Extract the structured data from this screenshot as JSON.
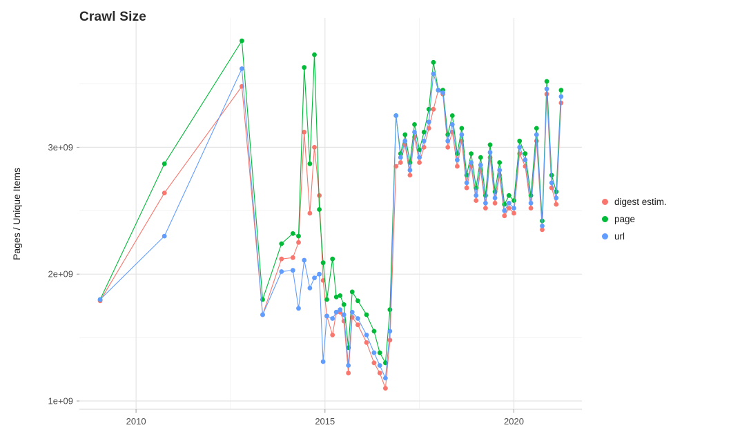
{
  "chart_data": {
    "type": "line",
    "title": "Crawl Size",
    "xlabel": "",
    "ylabel": "Pages / Unique Items",
    "y_unit": "value × 1e9 (billions of pages / unique items)",
    "grid": true,
    "legend_position": "right",
    "x_range": [
      2008.5,
      2021.8
    ],
    "y_range": [
      0.94,
      4.02
    ],
    "x_ticks": [
      {
        "value": 2010,
        "label": "2010"
      },
      {
        "value": 2015,
        "label": "2015"
      },
      {
        "value": 2020,
        "label": "2020"
      }
    ],
    "y_ticks": [
      {
        "value": 1,
        "label": "1e+09"
      },
      {
        "value": 2,
        "label": "2e+09"
      },
      {
        "value": 3,
        "label": "3e+09"
      }
    ],
    "x_minor": [
      2012.5,
      2017.5
    ],
    "y_minor": [
      1.5,
      2.5,
      3.5
    ],
    "series": [
      {
        "id": "digest-estim",
        "name": "digest estim.",
        "color": "#F8766D",
        "points": [
          [
            2009.05,
            1.79
          ],
          [
            2010.75,
            2.64
          ],
          [
            2012.8,
            3.48
          ],
          [
            2013.35,
            1.68
          ],
          [
            2013.85,
            2.12
          ],
          [
            2014.15,
            2.13
          ],
          [
            2014.3,
            2.25
          ],
          [
            2014.45,
            3.12
          ],
          [
            2014.6,
            2.48
          ],
          [
            2014.72,
            3.0
          ],
          [
            2014.85,
            2.62
          ],
          [
            2014.95,
            1.95
          ],
          [
            2015.05,
            1.67
          ],
          [
            2015.2,
            1.52
          ],
          [
            2015.3,
            1.7
          ],
          [
            2015.4,
            1.7
          ],
          [
            2015.5,
            1.63
          ],
          [
            2015.62,
            1.22
          ],
          [
            2015.72,
            1.66
          ],
          [
            2015.87,
            1.6
          ],
          [
            2016.1,
            1.46
          ],
          [
            2016.3,
            1.3
          ],
          [
            2016.45,
            1.22
          ],
          [
            2016.6,
            1.1
          ],
          [
            2016.72,
            1.48
          ],
          [
            2016.88,
            2.85
          ],
          [
            2017.0,
            2.88
          ],
          [
            2017.12,
            3.02
          ],
          [
            2017.25,
            2.78
          ],
          [
            2017.37,
            3.08
          ],
          [
            2017.5,
            2.88
          ],
          [
            2017.62,
            3.0
          ],
          [
            2017.75,
            3.15
          ],
          [
            2017.87,
            3.3
          ],
          [
            2018.0,
            3.45
          ],
          [
            2018.12,
            3.42
          ],
          [
            2018.25,
            3.0
          ],
          [
            2018.37,
            3.12
          ],
          [
            2018.5,
            2.85
          ],
          [
            2018.62,
            3.05
          ],
          [
            2018.75,
            2.68
          ],
          [
            2018.87,
            2.85
          ],
          [
            2019.0,
            2.58
          ],
          [
            2019.12,
            2.82
          ],
          [
            2019.25,
            2.52
          ],
          [
            2019.37,
            2.92
          ],
          [
            2019.5,
            2.56
          ],
          [
            2019.62,
            2.78
          ],
          [
            2019.75,
            2.46
          ],
          [
            2019.87,
            2.52
          ],
          [
            2020.0,
            2.48
          ],
          [
            2020.15,
            2.95
          ],
          [
            2020.3,
            2.85
          ],
          [
            2020.45,
            2.52
          ],
          [
            2020.6,
            3.05
          ],
          [
            2020.75,
            2.35
          ],
          [
            2020.87,
            3.42
          ],
          [
            2021.0,
            2.68
          ],
          [
            2021.12,
            2.55
          ],
          [
            2021.25,
            3.35
          ]
        ]
      },
      {
        "id": "page",
        "name": "page",
        "color": "#00BA38",
        "points": [
          [
            2009.05,
            1.8
          ],
          [
            2010.75,
            2.87
          ],
          [
            2012.8,
            3.84
          ],
          [
            2013.35,
            1.8
          ],
          [
            2013.85,
            2.24
          ],
          [
            2014.15,
            2.32
          ],
          [
            2014.3,
            2.3
          ],
          [
            2014.45,
            3.63
          ],
          [
            2014.6,
            2.87
          ],
          [
            2014.72,
            3.73
          ],
          [
            2014.85,
            2.51
          ],
          [
            2014.95,
            2.09
          ],
          [
            2015.05,
            1.8
          ],
          [
            2015.2,
            2.12
          ],
          [
            2015.3,
            1.82
          ],
          [
            2015.4,
            1.83
          ],
          [
            2015.5,
            1.76
          ],
          [
            2015.62,
            1.42
          ],
          [
            2015.72,
            1.86
          ],
          [
            2015.87,
            1.79
          ],
          [
            2016.1,
            1.68
          ],
          [
            2016.3,
            1.55
          ],
          [
            2016.45,
            1.38
          ],
          [
            2016.6,
            1.3
          ],
          [
            2016.72,
            1.72
          ],
          [
            2016.88,
            3.25
          ],
          [
            2017.0,
            2.95
          ],
          [
            2017.12,
            3.1
          ],
          [
            2017.25,
            2.88
          ],
          [
            2017.37,
            3.18
          ],
          [
            2017.5,
            2.98
          ],
          [
            2017.62,
            3.12
          ],
          [
            2017.75,
            3.3
          ],
          [
            2017.87,
            3.67
          ],
          [
            2018.0,
            3.45
          ],
          [
            2018.12,
            3.45
          ],
          [
            2018.25,
            3.1
          ],
          [
            2018.37,
            3.25
          ],
          [
            2018.5,
            2.95
          ],
          [
            2018.62,
            3.15
          ],
          [
            2018.75,
            2.78
          ],
          [
            2018.87,
            2.95
          ],
          [
            2019.0,
            2.68
          ],
          [
            2019.12,
            2.92
          ],
          [
            2019.25,
            2.62
          ],
          [
            2019.37,
            3.02
          ],
          [
            2019.5,
            2.65
          ],
          [
            2019.62,
            2.88
          ],
          [
            2019.75,
            2.55
          ],
          [
            2019.87,
            2.62
          ],
          [
            2020.0,
            2.58
          ],
          [
            2020.15,
            3.05
          ],
          [
            2020.3,
            2.95
          ],
          [
            2020.45,
            2.62
          ],
          [
            2020.6,
            3.15
          ],
          [
            2020.75,
            2.42
          ],
          [
            2020.87,
            3.52
          ],
          [
            2021.0,
            2.78
          ],
          [
            2021.12,
            2.65
          ],
          [
            2021.25,
            3.45
          ]
        ]
      },
      {
        "id": "url",
        "name": "url",
        "color": "#619CFF",
        "points": [
          [
            2009.05,
            1.8
          ],
          [
            2010.75,
            2.3
          ],
          [
            2012.8,
            3.62
          ],
          [
            2013.35,
            1.68
          ],
          [
            2013.85,
            2.02
          ],
          [
            2014.15,
            2.03
          ],
          [
            2014.3,
            1.73
          ],
          [
            2014.45,
            2.11
          ],
          [
            2014.6,
            1.89
          ],
          [
            2014.72,
            1.97
          ],
          [
            2014.85,
            2.0
          ],
          [
            2014.95,
            1.31
          ],
          [
            2015.05,
            1.67
          ],
          [
            2015.2,
            1.65
          ],
          [
            2015.3,
            1.7
          ],
          [
            2015.4,
            1.72
          ],
          [
            2015.5,
            1.68
          ],
          [
            2015.62,
            1.28
          ],
          [
            2015.72,
            1.7
          ],
          [
            2015.87,
            1.65
          ],
          [
            2016.1,
            1.52
          ],
          [
            2016.3,
            1.38
          ],
          [
            2016.45,
            1.28
          ],
          [
            2016.6,
            1.18
          ],
          [
            2016.72,
            1.55
          ],
          [
            2016.88,
            3.25
          ],
          [
            2017.0,
            2.92
          ],
          [
            2017.12,
            3.05
          ],
          [
            2017.25,
            2.82
          ],
          [
            2017.37,
            3.12
          ],
          [
            2017.5,
            2.92
          ],
          [
            2017.62,
            3.05
          ],
          [
            2017.75,
            3.2
          ],
          [
            2017.87,
            3.58
          ],
          [
            2018.0,
            3.45
          ],
          [
            2018.12,
            3.43
          ],
          [
            2018.25,
            3.05
          ],
          [
            2018.37,
            3.18
          ],
          [
            2018.5,
            2.9
          ],
          [
            2018.62,
            3.1
          ],
          [
            2018.75,
            2.72
          ],
          [
            2018.87,
            2.88
          ],
          [
            2019.0,
            2.62
          ],
          [
            2019.12,
            2.86
          ],
          [
            2019.25,
            2.56
          ],
          [
            2019.37,
            2.96
          ],
          [
            2019.5,
            2.6
          ],
          [
            2019.62,
            2.82
          ],
          [
            2019.75,
            2.5
          ],
          [
            2019.87,
            2.56
          ],
          [
            2020.0,
            2.52
          ],
          [
            2020.15,
            3.0
          ],
          [
            2020.3,
            2.9
          ],
          [
            2020.45,
            2.56
          ],
          [
            2020.6,
            3.1
          ],
          [
            2020.75,
            2.38
          ],
          [
            2020.87,
            3.46
          ],
          [
            2021.0,
            2.72
          ],
          [
            2021.12,
            2.6
          ],
          [
            2021.25,
            3.4
          ]
        ]
      }
    ]
  }
}
